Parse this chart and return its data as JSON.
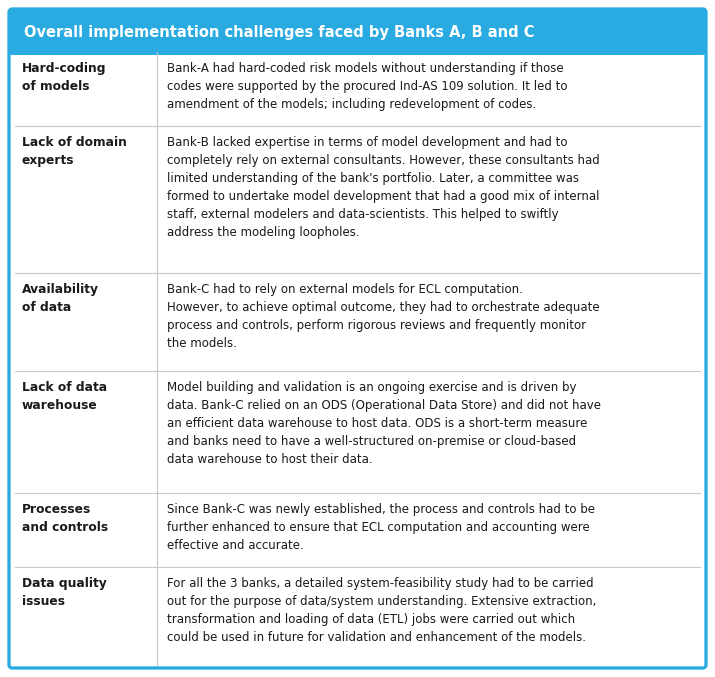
{
  "title": "Overall implementation challenges faced by Banks A, B and C",
  "title_bg": "#29ABE2",
  "title_color": "#FFFFFF",
  "border_color": "#29ABE2",
  "grid_color": "#C8C8C8",
  "label_color": "#1a1a1a",
  "text_color": "#1a1a1a",
  "rows": [
    {
      "label": "Hard-coding\nof models",
      "text": "Bank-A had hard-coded risk models without understanding if those\ncodes were supported by the procured Ind-AS 109 solution. It led to\namendment of the models; including redevelopment of codes."
    },
    {
      "label": "Lack of domain\nexperts",
      "text": "Bank-B lacked expertise in terms of model development and had to\ncompletely rely on external consultants. However, these consultants had\nlimited understanding of the bank's portfolio. Later, a committee was\nformed to undertake model development that had a good mix of internal\nstaff, external modelers and data-scientists. This helped to swiftly\naddress the modeling loopholes."
    },
    {
      "label": "Availability\nof data",
      "text": "Bank-C had to rely on external models for ECL computation.\nHowever, to achieve optimal outcome, they had to orchestrate adequate\nprocess and controls, perform rigorous reviews and frequently monitor\nthe models."
    },
    {
      "label": "Lack of data\nwarehouse",
      "text": "Model building and validation is an ongoing exercise and is driven by\ndata. Bank-C relied on an ODS (Operational Data Store) and did not have\nan efficient data warehouse to host data. ODS is a short-term measure\nand banks need to have a well-structured on-premise or cloud-based\ndata warehouse to host their data."
    },
    {
      "label": "Processes\nand controls",
      "text": "Since Bank-C was newly established, the process and controls had to be\nfurther enhanced to ensure that ECL computation and accounting were\neffective and accurate."
    },
    {
      "label": "Data quality\nissues",
      "text": "For all the 3 banks, a detailed system-feasibility study had to be carried\nout for the purpose of data/system understanding. Extensive extraction,\ntransformation and loading of data (ETL) jobs were carried out which\ncould be used in future for validation and enhancement of the models."
    }
  ],
  "figsize": [
    7.15,
    6.77
  ],
  "dpi": 100,
  "row_line_heights": [
    3,
    6,
    4,
    5,
    3,
    4
  ]
}
